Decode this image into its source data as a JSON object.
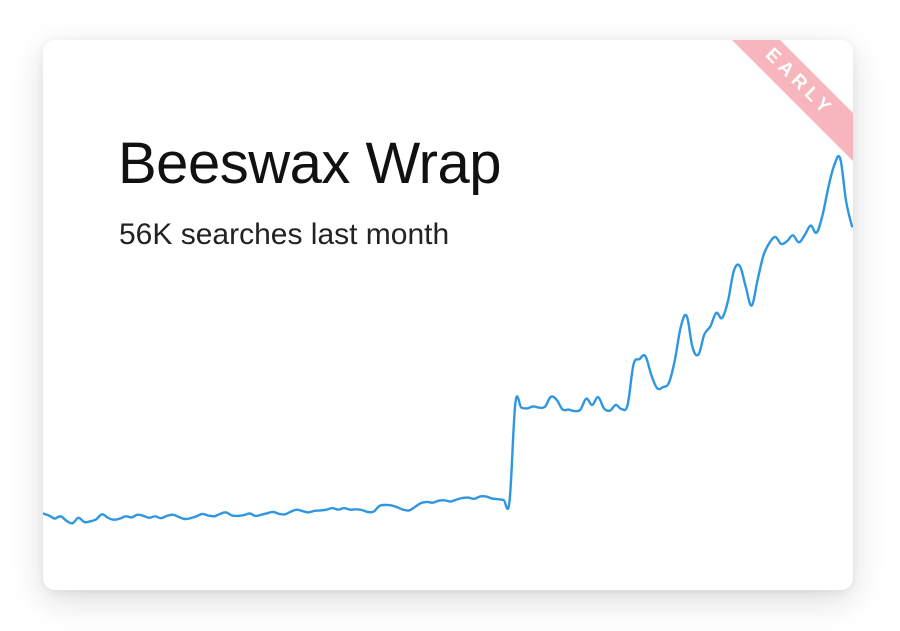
{
  "card": {
    "title": "Beeswax Wrap",
    "subtitle": "56K searches last month",
    "badge": "EARLY"
  },
  "colors": {
    "line": "#2f96e0",
    "ribbon": "#f7b6bd"
  },
  "chart_data": {
    "type": "line",
    "title": "Beeswax Wrap",
    "subtitle": "56K searches last month",
    "xlabel": "",
    "ylabel": "",
    "grid": false,
    "axes_visible": false,
    "ylim": [
      0,
      100
    ],
    "series": [
      {
        "values": [
          4.5,
          4.0,
          3.2,
          3.8,
          2.6,
          2.0,
          3.4,
          2.3,
          2.5,
          3.0,
          4.3,
          3.4,
          2.9,
          3.2,
          3.8,
          3.5,
          4.2,
          3.9,
          3.4,
          3.8,
          3.3,
          3.9,
          4.2,
          3.6,
          3.1,
          3.3,
          3.8,
          4.4,
          4.0,
          3.8,
          4.4,
          4.8,
          4.0,
          3.9,
          4.1,
          4.5,
          3.9,
          4.2,
          4.6,
          4.9,
          4.4,
          4.3,
          5.0,
          5.5,
          5.1,
          4.8,
          5.2,
          5.3,
          5.5,
          5.9,
          5.5,
          5.9,
          5.5,
          5.6,
          5.4,
          4.9,
          5.0,
          6.5,
          6.7,
          6.6,
          6.1,
          5.5,
          5.3,
          6.2,
          7.2,
          7.5,
          7.3,
          7.8,
          7.9,
          7.6,
          8.1,
          8.5,
          8.6,
          8.3,
          8.9,
          8.9,
          8.4,
          8.2,
          8.0,
          7.6,
          33.0,
          31.8,
          31.6,
          32.1,
          31.8,
          32.0,
          34.6,
          33.8,
          31.3,
          31.3,
          30.9,
          31.3,
          34.1,
          32.5,
          34.5,
          31.6,
          31.0,
          32.5,
          31.4,
          32.5,
          42.9,
          44.3,
          45.1,
          40.3,
          36.8,
          37.1,
          38.2,
          44.0,
          52.6,
          55.4,
          47.3,
          45.5,
          50.7,
          52.7,
          56.2,
          54.9,
          59.3,
          67.1,
          68.3,
          63.0,
          58.1,
          64.6,
          71.0,
          74.2,
          75.8,
          74.0,
          74.7,
          76.2,
          74.4,
          76.3,
          78.7,
          76.9,
          81.4,
          88.6,
          94.3,
          96.0,
          85.0,
          78.5
        ],
        "color": "#2f96e0"
      }
    ]
  }
}
